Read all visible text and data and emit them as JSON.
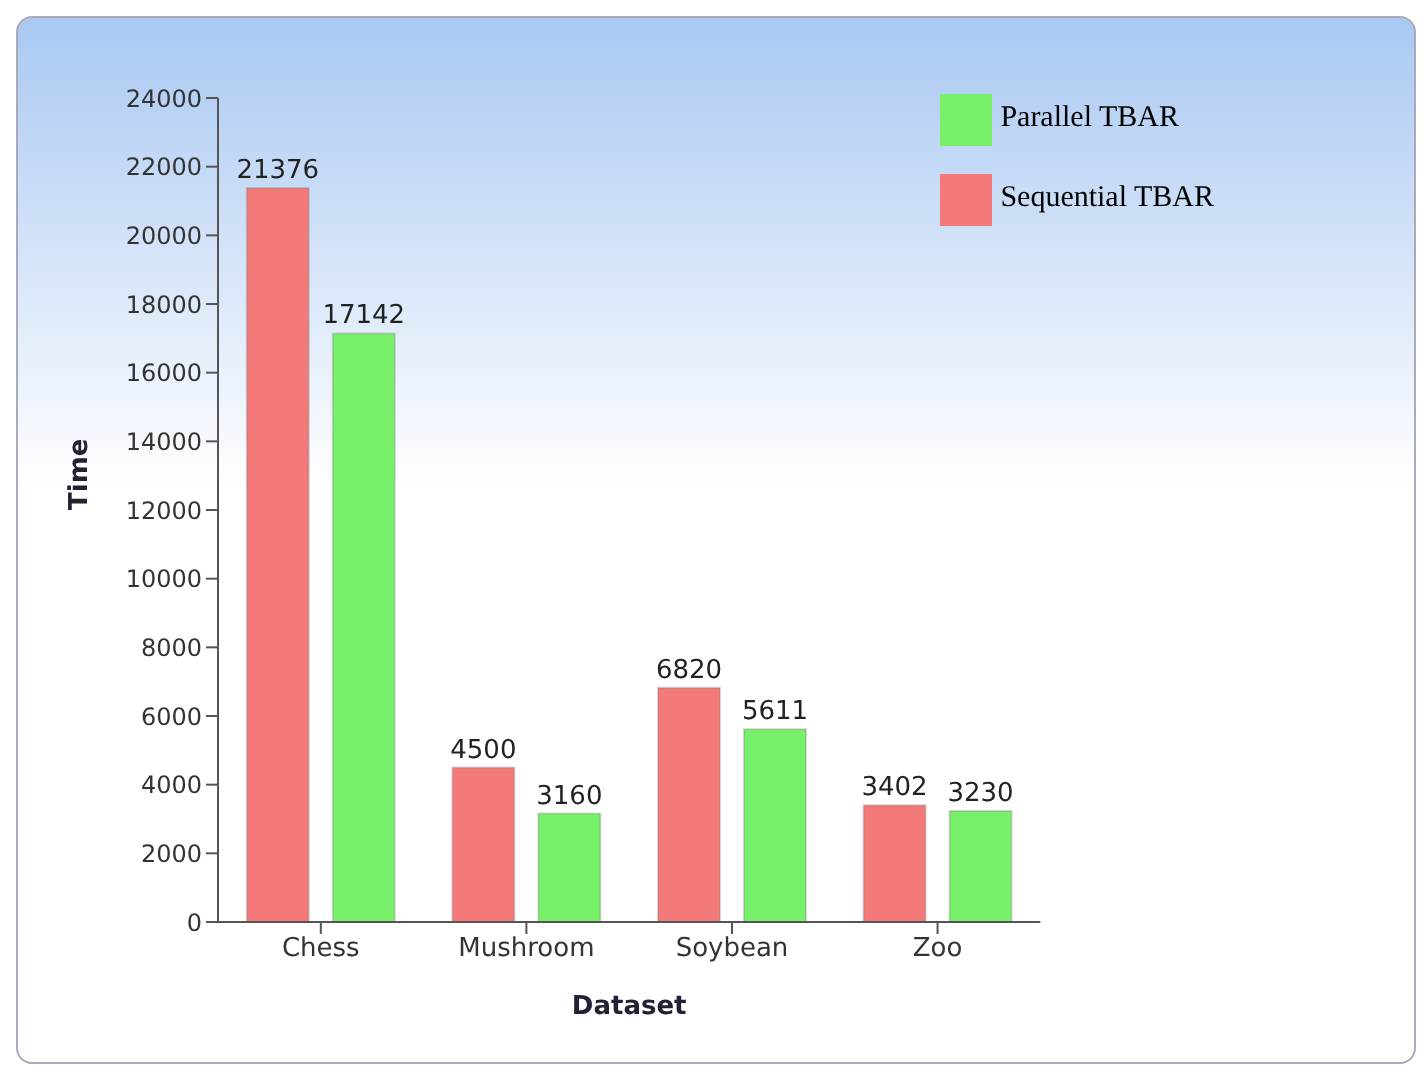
{
  "chart_data": {
    "type": "bar",
    "xlabel": "Dataset",
    "ylabel": "Time",
    "categories": [
      "Chess",
      "Mushroom",
      "Soybean",
      "Zoo"
    ],
    "series": [
      {
        "name": "Sequential TBAR",
        "color": "#f47a7a",
        "values": [
          21376,
          4500,
          6820,
          3402
        ]
      },
      {
        "name": "Parallel TBAR",
        "color": "#78f06a",
        "values": [
          17142,
          3160,
          5611,
          3230
        ]
      }
    ],
    "ylim": [
      0,
      24000
    ],
    "yticks": [
      0,
      2000,
      4000,
      6000,
      8000,
      10000,
      12000,
      14000,
      16000,
      18000,
      20000,
      22000,
      24000
    ],
    "data_labels": true,
    "legend": "top right",
    "grid": false
  }
}
